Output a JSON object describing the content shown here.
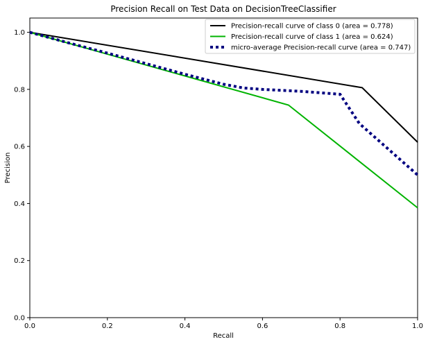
{
  "chart_data": {
    "type": "line",
    "title": "Precision Recall on Test Data on DecisionTreeClassifier",
    "xlabel": "Recall",
    "ylabel": "Precision",
    "xlim": [
      0.0,
      1.0
    ],
    "ylim": [
      0.0,
      1.05
    ],
    "x_ticks": [
      "0.0",
      "0.2",
      "0.4",
      "0.6",
      "0.8",
      "1.0"
    ],
    "y_ticks": [
      "0.0",
      "0.2",
      "0.4",
      "0.6",
      "0.8",
      "1.0"
    ],
    "grid": false,
    "legend_position": "top-right",
    "series": [
      {
        "name": "Precision-recall curve of class 0 (area = 0.778)",
        "color": "#000000",
        "style": "solid",
        "x": [
          0.0,
          0.857,
          1.0
        ],
        "y": [
          1.0,
          0.806,
          0.615
        ]
      },
      {
        "name": "Precision-recall curve of class 1 (area = 0.624)",
        "color": "#00b300",
        "style": "solid",
        "x": [
          0.0,
          0.667,
          1.0
        ],
        "y": [
          1.0,
          0.745,
          0.385
        ]
      },
      {
        "name": "micro-average Precision-recall curve (area = 0.747)",
        "color": "#000080",
        "style": "dotted",
        "x": [
          0.0,
          0.1,
          0.2,
          0.3,
          0.4,
          0.5,
          0.55,
          0.6,
          0.7,
          0.8,
          0.85,
          0.9,
          1.0
        ],
        "y": [
          1.0,
          0.963,
          0.927,
          0.89,
          0.853,
          0.818,
          0.805,
          0.8,
          0.793,
          0.783,
          0.68,
          0.62,
          0.5
        ]
      }
    ]
  }
}
